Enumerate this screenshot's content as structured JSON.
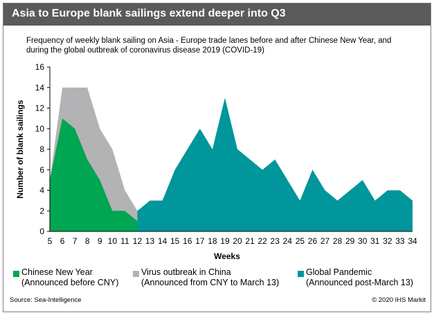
{
  "title": "Asia to Europe blank sailings extend deeper into Q3",
  "subtitle": "Frequency of weekly blank sailing on Asia - Europe trade lanes before and after Chinese New Year, and during the global outbreak of coronavirus disease 2019 (COVID-19)",
  "source": "Source: Sea-Intelligence",
  "copyright": "© 2020 IHS Markit",
  "chart_data": {
    "type": "area",
    "xlabel": "Weeks",
    "ylabel": "Number of blank sailings",
    "ylim": [
      0,
      16
    ],
    "yticks": [
      "0",
      "2",
      "4",
      "6",
      "8",
      "10",
      "12",
      "14",
      "16"
    ],
    "x": [
      "5",
      "6",
      "7",
      "8",
      "9",
      "10",
      "11",
      "12",
      "13",
      "14",
      "15",
      "16",
      "17",
      "18",
      "19",
      "20",
      "21",
      "22",
      "23",
      "24",
      "25",
      "26",
      "27",
      "28",
      "29",
      "30",
      "31",
      "32",
      "33",
      "34"
    ],
    "grid": false,
    "legend_position": "bottom",
    "series": [
      {
        "name": "Chinese New Year",
        "note": "(Announced before CNY)",
        "color": "#00a651",
        "values": [
          5,
          11,
          10,
          7,
          5,
          2,
          2,
          1,
          2,
          1,
          0,
          null,
          null,
          null,
          null,
          null,
          null,
          null,
          null,
          null,
          null,
          null,
          null,
          null,
          null,
          null,
          null,
          null,
          null,
          null
        ]
      },
      {
        "name": "Virus outbreak in China",
        "note": "(Announced from CNY to March 13)",
        "color": "#b3b3b5",
        "values": [
          5,
          14,
          14,
          14,
          10,
          8,
          4,
          2,
          2,
          3,
          0,
          null,
          null,
          null,
          null,
          null,
          null,
          null,
          null,
          null,
          null,
          null,
          null,
          null,
          null,
          null,
          null,
          null,
          null,
          null
        ]
      },
      {
        "name": "Global Pandemic",
        "note": "(Announced post-March 13)",
        "color": "#00969b",
        "values": [
          null,
          null,
          null,
          null,
          null,
          null,
          null,
          2,
          3,
          3,
          6,
          8,
          10,
          8,
          13,
          8,
          7,
          6,
          7,
          5,
          3,
          6,
          4,
          3,
          4,
          5,
          3,
          4,
          4,
          3
        ]
      }
    ]
  }
}
